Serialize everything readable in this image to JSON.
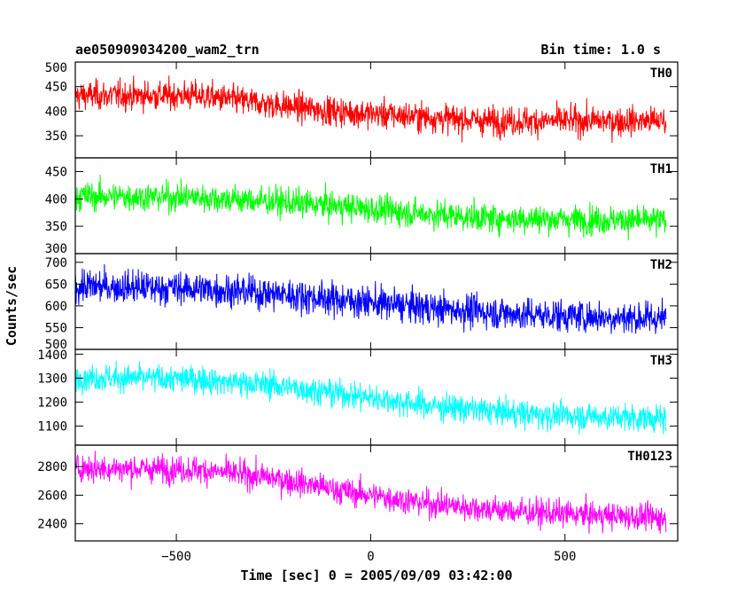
{
  "chart_data": {
    "type": "line",
    "title": "ae050909034200_wam2_trn",
    "bin_time": "Bin time: 1.0 s",
    "xlabel": "Time [sec] 0 = 2005/09/09 03:42:00",
    "ylabel": "Counts/sec",
    "xlim": [
      -760,
      790
    ],
    "x_ticks": [
      -500,
      0,
      500
    ],
    "x_tick_labels": [
      "−500",
      "0",
      "500"
    ],
    "x_data_range": [
      -760,
      760
    ],
    "panels": [
      {
        "name": "TH0",
        "color": "#ff0000",
        "ylim": [
          305,
          500
        ],
        "y_ticks": [
          350,
          400,
          450,
          500
        ],
        "trend": [
          [
            -760,
            432
          ],
          [
            -450,
            432
          ],
          [
            -300,
            418
          ],
          [
            -100,
            400
          ],
          [
            100,
            390
          ],
          [
            300,
            380
          ],
          [
            760,
            380
          ]
        ],
        "noise": 25
      },
      {
        "name": "TH1",
        "color": "#00ff00",
        "ylim": [
          300,
          475
        ],
        "y_ticks": [
          300,
          350,
          400,
          450
        ],
        "trend": [
          [
            -760,
            405
          ],
          [
            -450,
            403
          ],
          [
            -300,
            397
          ],
          [
            -100,
            388
          ],
          [
            100,
            375
          ],
          [
            300,
            365
          ],
          [
            760,
            360
          ]
        ],
        "noise": 22
      },
      {
        "name": "TH2",
        "color": "#0000ff",
        "ylim": [
          500,
          720
        ],
        "y_ticks": [
          500,
          550,
          600,
          650,
          700
        ],
        "trend": [
          [
            -760,
            645
          ],
          [
            -450,
            640
          ],
          [
            -250,
            628
          ],
          [
            -50,
            612
          ],
          [
            150,
            595
          ],
          [
            400,
            580
          ],
          [
            760,
            570
          ]
        ],
        "noise": 32
      },
      {
        "name": "TH3",
        "color": "#00ffff",
        "ylim": [
          1020,
          1420
        ],
        "y_ticks": [
          1100,
          1200,
          1300,
          1400
        ],
        "trend": [
          [
            -760,
            1305
          ],
          [
            -450,
            1295
          ],
          [
            -250,
            1270
          ],
          [
            -50,
            1230
          ],
          [
            150,
            1185
          ],
          [
            400,
            1150
          ],
          [
            760,
            1130
          ]
        ],
        "noise": 48
      },
      {
        "name": "TH0123",
        "color": "#ff00ff",
        "ylim": [
          2280,
          2950
        ],
        "y_ticks": [
          2400,
          2600,
          2800
        ],
        "trend": [
          [
            -760,
            2790
          ],
          [
            -450,
            2780
          ],
          [
            -250,
            2720
          ],
          [
            -50,
            2620
          ],
          [
            150,
            2540
          ],
          [
            400,
            2480
          ],
          [
            760,
            2440
          ]
        ],
        "noise": 80
      }
    ]
  }
}
